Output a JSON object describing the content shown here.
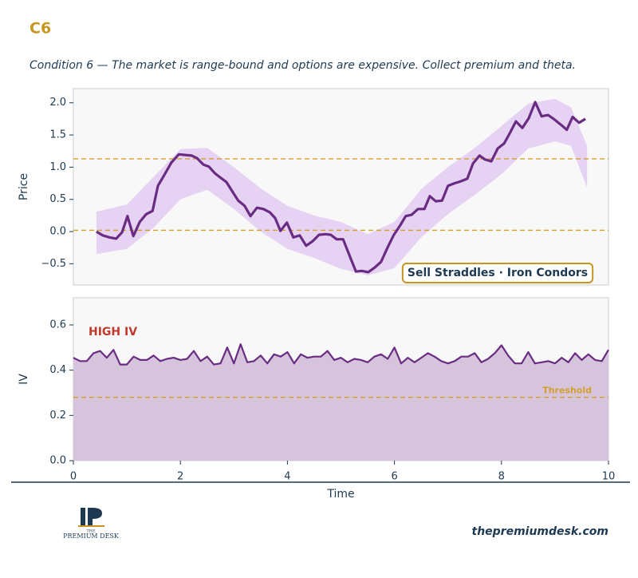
{
  "header": {
    "title": "C6",
    "subtitle": "Condition 6 — The market is range-bound and options are expensive. Collect premium and theta."
  },
  "chart_data": [
    {
      "type": "line",
      "ylabel": "Price",
      "color": "#6a2c82",
      "xlim": [
        0,
        10
      ],
      "ylim": [
        -0.83,
        2.22
      ],
      "yticks": [
        {
          "value": -0.5,
          "label": "−0.5"
        },
        {
          "value": 0,
          "label": "0.0"
        },
        {
          "value": 0.5,
          "label": "0.5"
        },
        {
          "value": 1,
          "label": "1.0"
        },
        {
          "value": 1.5,
          "label": "1.5"
        },
        {
          "value": 2,
          "label": "2.0"
        }
      ],
      "x": [
        0.43,
        0.55,
        0.67,
        0.8,
        0.91,
        1.01,
        1.12,
        1.24,
        1.36,
        1.48,
        1.58,
        1.7,
        1.83,
        1.97,
        2.09,
        2.21,
        2.31,
        2.43,
        2.53,
        2.64,
        2.76,
        2.86,
        2.98,
        3.08,
        3.2,
        3.31,
        3.43,
        3.55,
        3.67,
        3.77,
        3.87,
        3.99,
        4.11,
        4.23,
        4.35,
        4.47,
        4.59,
        4.71,
        4.81,
        4.92,
        5.04,
        5.16,
        5.28,
        5.39,
        5.51,
        5.63,
        5.75,
        5.87,
        5.99,
        6.11,
        6.21,
        6.32,
        6.44,
        6.56,
        6.66,
        6.77,
        6.89,
        7.0,
        7.12,
        7.24,
        7.36,
        7.47,
        7.59,
        7.69,
        7.81,
        7.93,
        8.05,
        8.15,
        8.27,
        8.39,
        8.51,
        8.63,
        8.75,
        8.87,
        8.99,
        9.11,
        9.22,
        9.33,
        9.45,
        9.57
      ],
      "values": [
        0.0,
        -0.06,
        -0.09,
        -0.11,
        -0.01,
        0.24,
        -0.07,
        0.15,
        0.27,
        0.32,
        0.71,
        0.88,
        1.07,
        1.2,
        1.19,
        1.18,
        1.14,
        1.04,
        1.01,
        0.91,
        0.83,
        0.77,
        0.61,
        0.48,
        0.4,
        0.24,
        0.37,
        0.35,
        0.3,
        0.21,
        0.01,
        0.14,
        -0.09,
        -0.06,
        -0.22,
        -0.15,
        -0.05,
        -0.04,
        -0.05,
        -0.12,
        -0.12,
        -0.37,
        -0.62,
        -0.61,
        -0.63,
        -0.56,
        -0.47,
        -0.25,
        -0.05,
        0.1,
        0.24,
        0.26,
        0.35,
        0.35,
        0.55,
        0.47,
        0.48,
        0.71,
        0.75,
        0.78,
        0.82,
        1.06,
        1.18,
        1.12,
        1.09,
        1.29,
        1.37,
        1.52,
        1.71,
        1.61,
        1.76,
        2.01,
        1.79,
        1.81,
        1.74,
        1.66,
        1.58,
        1.78,
        1.69,
        1.75
      ],
      "band": {
        "color": "#e6d3f3",
        "x": [
          0.43,
          1,
          1.5,
          2,
          2.5,
          3,
          3.5,
          4,
          4.5,
          5,
          5.5,
          6,
          6.5,
          7,
          7.5,
          8,
          8.5,
          9,
          9.3,
          9.6
        ],
        "upper": [
          0.31,
          0.42,
          0.85,
          1.28,
          1.3,
          1.0,
          0.67,
          0.4,
          0.25,
          0.15,
          -0.04,
          0.15,
          0.66,
          1.0,
          1.3,
          1.64,
          1.99,
          2.06,
          1.93,
          1.33
        ],
        "lower": [
          -0.35,
          -0.27,
          0.06,
          0.5,
          0.65,
          0.35,
          0.0,
          -0.27,
          -0.41,
          -0.58,
          -0.68,
          -0.57,
          -0.09,
          0.27,
          0.57,
          0.89,
          1.29,
          1.4,
          1.33,
          0.68
        ]
      },
      "hlines": [
        {
          "value": 1.13,
          "color": "#d4a02a"
        },
        {
          "value": 0.02,
          "color": "#d4a02a"
        }
      ],
      "annotation": {
        "text": "Sell Straddles · Iron Condors",
        "color": "#c8961e"
      }
    },
    {
      "type": "area",
      "ylabel": "IV",
      "xlabel": "Time",
      "color": "#6a2c82",
      "fill": "#d6c3dc",
      "xlim": [
        0,
        10
      ],
      "ylim": [
        0,
        0.72
      ],
      "xticks": [
        0,
        2,
        4,
        6,
        8,
        10
      ],
      "yticks": [
        {
          "value": 0,
          "label": "0.0"
        },
        {
          "value": 0.2,
          "label": "0.2"
        },
        {
          "value": 0.4,
          "label": "0.4"
        },
        {
          "value": 0.6,
          "label": "0.6"
        }
      ],
      "x": [
        0,
        0.125,
        0.25,
        0.375,
        0.5,
        0.625,
        0.75,
        0.875,
        1,
        1.125,
        1.25,
        1.375,
        1.5,
        1.625,
        1.75,
        1.875,
        2,
        2.125,
        2.25,
        2.375,
        2.5,
        2.625,
        2.75,
        2.875,
        3,
        3.125,
        3.25,
        3.375,
        3.5,
        3.625,
        3.75,
        3.875,
        4,
        4.125,
        4.25,
        4.375,
        4.5,
        4.625,
        4.75,
        4.875,
        5,
        5.125,
        5.25,
        5.375,
        5.5,
        5.625,
        5.75,
        5.875,
        6,
        6.125,
        6.25,
        6.375,
        6.5,
        6.625,
        6.75,
        6.875,
        7,
        7.125,
        7.25,
        7.375,
        7.5,
        7.625,
        7.75,
        7.875,
        8,
        8.125,
        8.25,
        8.375,
        8.5,
        8.625,
        8.75,
        8.875,
        9,
        9.125,
        9.25,
        9.375,
        9.5,
        9.625,
        9.75,
        9.875,
        10
      ],
      "values": [
        0.455,
        0.44,
        0.44,
        0.475,
        0.485,
        0.455,
        0.49,
        0.425,
        0.425,
        0.46,
        0.445,
        0.445,
        0.465,
        0.44,
        0.45,
        0.455,
        0.445,
        0.45,
        0.485,
        0.44,
        0.46,
        0.425,
        0.43,
        0.5,
        0.43,
        0.515,
        0.435,
        0.44,
        0.465,
        0.43,
        0.47,
        0.46,
        0.48,
        0.43,
        0.47,
        0.455,
        0.46,
        0.46,
        0.485,
        0.445,
        0.455,
        0.435,
        0.45,
        0.445,
        0.435,
        0.46,
        0.47,
        0.45,
        0.5,
        0.43,
        0.455,
        0.435,
        0.455,
        0.475,
        0.46,
        0.44,
        0.43,
        0.44,
        0.46,
        0.46,
        0.475,
        0.435,
        0.45,
        0.475,
        0.51,
        0.465,
        0.43,
        0.43,
        0.48,
        0.43,
        0.435,
        0.44,
        0.43,
        0.455,
        0.435,
        0.475,
        0.445,
        0.47,
        0.445,
        0.44,
        0.49
      ],
      "threshold": {
        "value": 0.28,
        "label": "Threshold",
        "color": "#d4a02a"
      },
      "annotation": {
        "text": "HIGH IV",
        "color": "#c0392b"
      }
    }
  ],
  "footer": {
    "logo_small": "THE",
    "logo_name": "PREMIUM DESK",
    "url": "thepremiumdesk.com"
  }
}
